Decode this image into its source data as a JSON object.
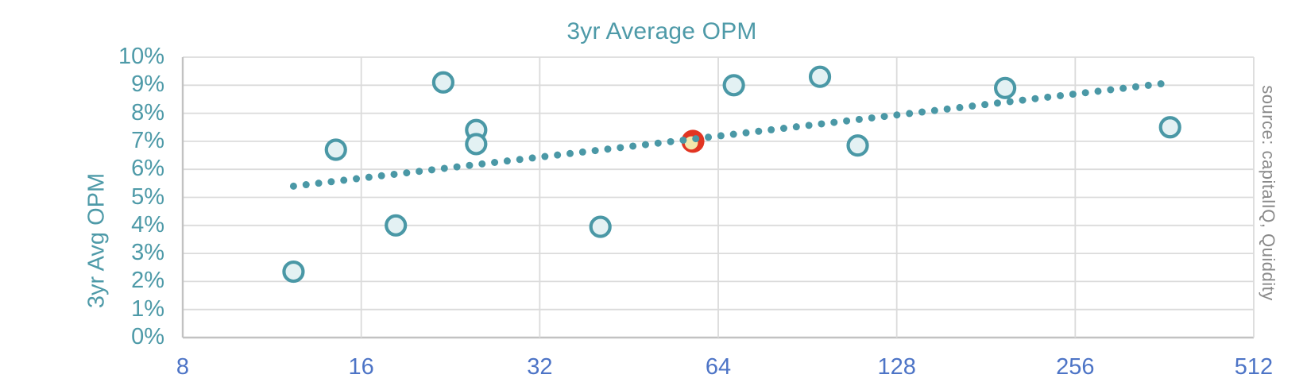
{
  "colors": {
    "teal_text": "#4E9AA8",
    "marker_stroke": "#4A98A6",
    "marker_fill": "#E3F1F3",
    "trend_dot": "#4A98A6",
    "x_label_blue": "#4D74C6",
    "gridline": "#DBDBDB",
    "axis_line": "#C2C2C2",
    "source_gray": "#8A8A8A",
    "highlight_ring": "#E23522",
    "highlight_fill": "#F3E7AB"
  },
  "chart_data": {
    "type": "scatter",
    "title": "3yr Average OPM",
    "ylabel": "3yr Avg OPM",
    "xlabel": "",
    "source_note": "source: capitalIQ, Quiddity",
    "x_scale": "log2",
    "xlim": [
      8,
      512
    ],
    "ylim_pct": [
      0,
      10
    ],
    "grid": true,
    "x_ticks": [
      "8",
      "16",
      "32",
      "64",
      "128",
      "256",
      "512"
    ],
    "y_ticks": [
      "10%",
      "9%",
      "8%",
      "7%",
      "6%",
      "5%",
      "4%",
      "3%",
      "2%",
      "1%",
      "0%"
    ],
    "points": [
      {
        "x": 12.3,
        "y_pct": 2.35
      },
      {
        "x": 14.5,
        "y_pct": 6.7
      },
      {
        "x": 18.3,
        "y_pct": 4.0
      },
      {
        "x": 22.0,
        "y_pct": 9.1
      },
      {
        "x": 25.0,
        "y_pct": 7.4
      },
      {
        "x": 25.0,
        "y_pct": 6.9
      },
      {
        "x": 40.5,
        "y_pct": 3.95
      },
      {
        "x": 68.0,
        "y_pct": 9.0
      },
      {
        "x": 95.0,
        "y_pct": 9.3
      },
      {
        "x": 110.0,
        "y_pct": 6.85
      },
      {
        "x": 195.0,
        "y_pct": 8.9
      },
      {
        "x": 370.0,
        "y_pct": 7.5
      }
    ],
    "highlight_point": {
      "x": 58.0,
      "y_pct": 7.0
    },
    "trendline": {
      "style": "dotted",
      "x_start": 12.3,
      "y_start_pct": 5.4,
      "x_end": 357.0,
      "y_end_pct": 9.05,
      "dot_count": 70
    }
  }
}
